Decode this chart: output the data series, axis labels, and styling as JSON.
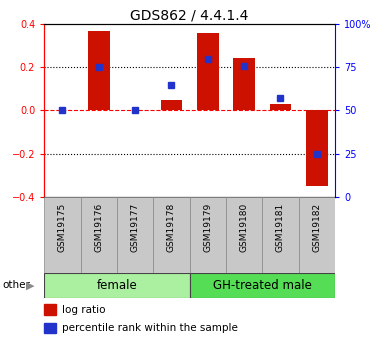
{
  "title": "GDS862 / 4.4.1.4",
  "samples": [
    "GSM19175",
    "GSM19176",
    "GSM19177",
    "GSM19178",
    "GSM19179",
    "GSM19180",
    "GSM19181",
    "GSM19182"
  ],
  "log_ratio": [
    0.0,
    0.37,
    0.0,
    0.05,
    0.36,
    0.245,
    0.03,
    -0.35
  ],
  "percentile_rank": [
    50,
    75,
    50,
    65,
    80,
    76,
    57,
    25
  ],
  "groups": [
    {
      "label": "female",
      "start": 0,
      "end": 4,
      "color": "#aaf0a0"
    },
    {
      "label": "GH-treated male",
      "start": 4,
      "end": 8,
      "color": "#55dd55"
    }
  ],
  "bar_color": "#cc1100",
  "dot_color": "#2233cc",
  "ylim": [
    -0.4,
    0.4
  ],
  "y2lim": [
    0,
    100
  ],
  "yticks": [
    -0.4,
    -0.2,
    0.0,
    0.2,
    0.4
  ],
  "y2ticks": [
    0,
    25,
    50,
    75,
    100
  ],
  "y2ticklabels": [
    "0",
    "25",
    "50",
    "75",
    "100%"
  ],
  "hlines": [
    0.2,
    -0.2
  ],
  "bar_width": 0.6,
  "title_fontsize": 10,
  "axis_fontsize": 7,
  "legend_fontsize": 7.5,
  "tick_label_fontsize": 6.5,
  "group_label_fontsize": 8.5,
  "other_label": "other",
  "background_color": "#ffffff",
  "plot_bg": "#ffffff",
  "tick_area_color": "#c8c8c8"
}
